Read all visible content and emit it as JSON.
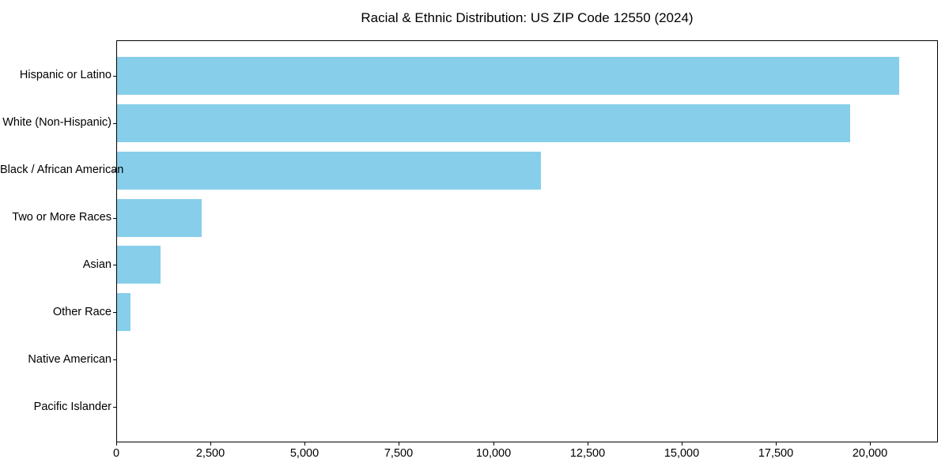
{
  "figure": {
    "title": "Racial & Ethnic Distribution: US ZIP Code 12550 (2024)"
  },
  "chart_data": {
    "type": "bar",
    "orientation": "horizontal",
    "title": "Racial & Ethnic Distribution: US ZIP Code 12550 (2024)",
    "categories": [
      "Hispanic or Latino",
      "White (Non-Hispanic)",
      "Black / African American",
      "Two or More Races",
      "Asian",
      "Other Race",
      "Native American",
      "Pacific Islander"
    ],
    "values": [
      20750,
      19450,
      11250,
      2250,
      1150,
      350,
      0,
      0
    ],
    "xlabel": "",
    "ylabel": "",
    "xlim": [
      0,
      21800
    ],
    "x_ticks": [
      0,
      2500,
      5000,
      7500,
      10000,
      12500,
      15000,
      17500,
      20000
    ],
    "x_tick_labels": [
      "0",
      "2,500",
      "5,000",
      "7,500",
      "10,000",
      "12,500",
      "15,000",
      "17,500",
      "20,000"
    ],
    "bar_color": "#87CEEB",
    "bar_height_fraction": 0.8,
    "grid": false,
    "legend": null
  }
}
